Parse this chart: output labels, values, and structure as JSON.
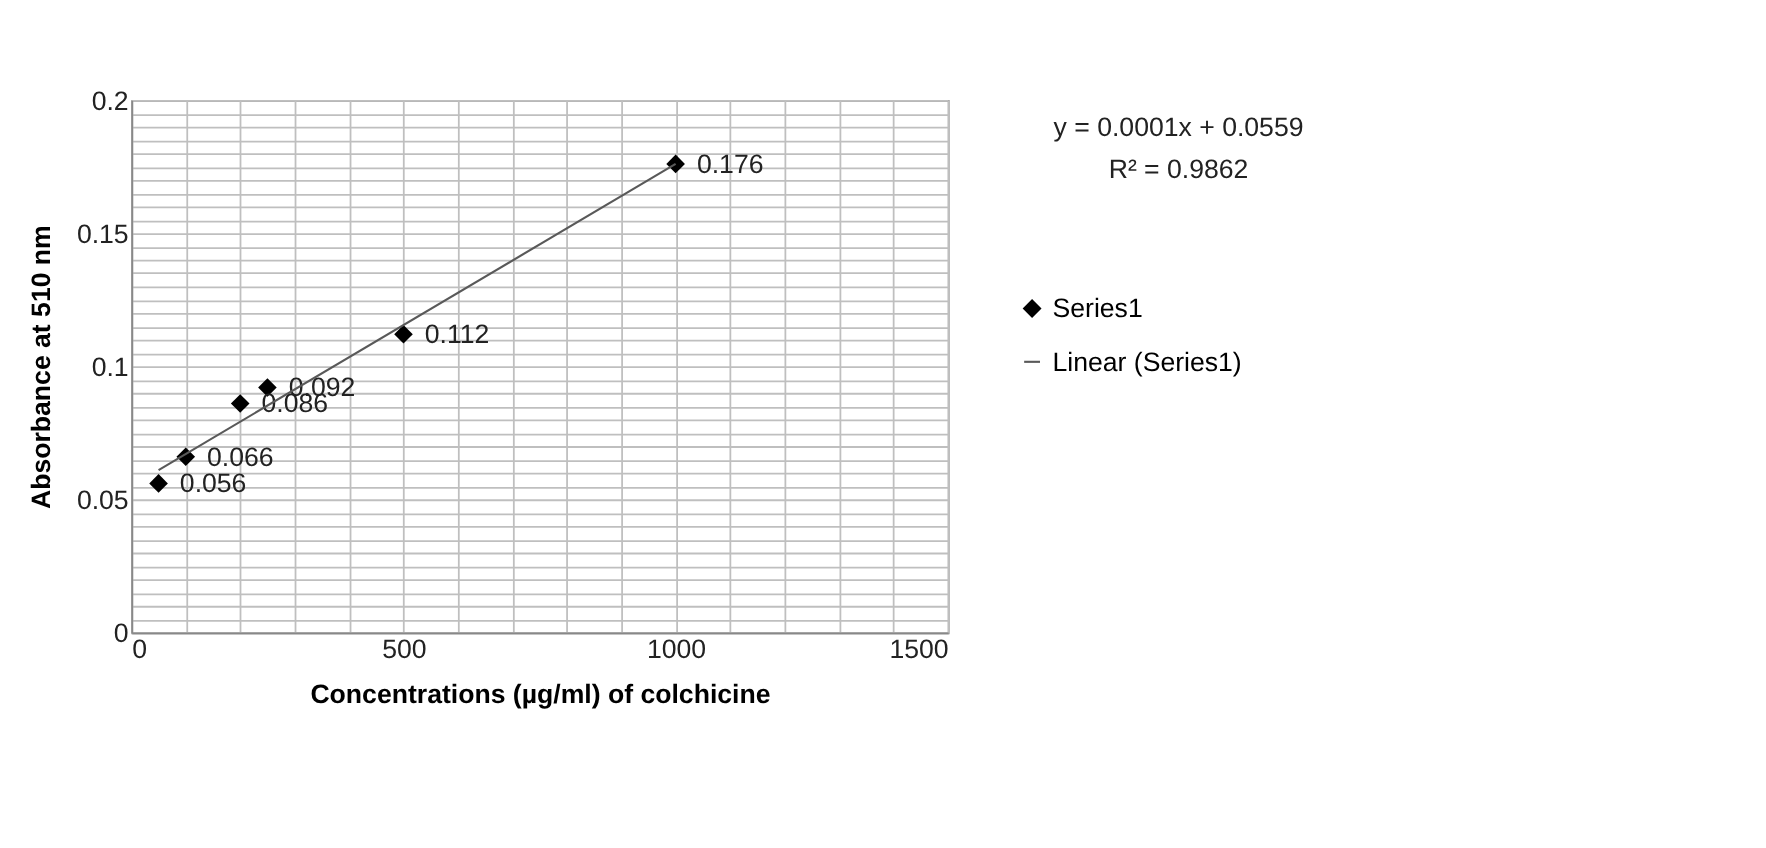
{
  "chart_data": {
    "type": "scatter",
    "xlabel": "Concentrations (µg/ml) of colchicine",
    "ylabel": "Absorbance at 510 nm",
    "x": [
      50,
      100,
      200,
      250,
      500,
      1000
    ],
    "series": [
      {
        "name": "Series1",
        "color": "#000000",
        "marker": "diamond",
        "values": [
          0.056,
          0.066,
          0.086,
          0.092,
          0.112,
          0.176
        ],
        "value_labels": [
          "0.056",
          "0.066",
          "0.086",
          "0.092",
          "0.112",
          "0.176"
        ]
      },
      {
        "name": "Linear (Series1)",
        "type": "line",
        "color": "#595959",
        "line_style": "solid",
        "marker": "none",
        "x": [
          50,
          1000
        ],
        "values": [
          0.061,
          0.176
        ]
      }
    ],
    "xlim": [
      0,
      1500
    ],
    "ylim": [
      0,
      0.2
    ],
    "xticks": [
      0,
      {
        "value": 100,
        "label": null
      },
      {
        "value": 200,
        "label": null
      },
      {
        "value": 300,
        "label": null
      },
      {
        "value": 400,
        "label": null
      },
      500,
      {
        "value": 600,
        "label": null
      },
      {
        "value": 700,
        "label": null
      },
      {
        "value": 800,
        "label": null
      },
      {
        "value": 900,
        "label": null
      },
      1000,
      {
        "value": 1100,
        "label": null
      },
      {
        "value": 1200,
        "label": null
      },
      {
        "value": 1300,
        "label": null
      },
      {
        "value": 1400,
        "label": null
      },
      1500
    ],
    "yticks": [
      0,
      {
        "value": 0.005,
        "label": null
      },
      {
        "value": 0.01,
        "label": null
      },
      {
        "value": 0.015,
        "label": null
      },
      {
        "value": 0.02,
        "label": null
      },
      {
        "value": 0.025,
        "label": null
      },
      {
        "value": 0.03,
        "label": null
      },
      {
        "value": 0.035,
        "label": null
      },
      {
        "value": 0.04,
        "label": null
      },
      {
        "value": 0.045,
        "label": null
      },
      0.05,
      {
        "value": 0.055,
        "label": null
      },
      {
        "value": 0.06,
        "label": null
      },
      {
        "value": 0.065,
        "label": null
      },
      {
        "value": 0.07,
        "label": null
      },
      {
        "value": 0.075,
        "label": null
      },
      {
        "value": 0.08,
        "label": null
      },
      {
        "value": 0.085,
        "label": null
      },
      {
        "value": 0.09,
        "label": null
      },
      {
        "value": 0.095,
        "label": null
      },
      0.1,
      {
        "value": 0.105,
        "label": null
      },
      {
        "value": 0.11,
        "label": null
      },
      {
        "value": 0.115,
        "label": null
      },
      {
        "value": 0.12,
        "label": null
      },
      {
        "value": 0.125,
        "label": null
      },
      {
        "value": 0.13,
        "label": null
      },
      {
        "value": 0.135,
        "label": null
      },
      {
        "value": 0.14,
        "label": null
      },
      {
        "value": 0.145,
        "label": null
      },
      0.15,
      {
        "value": 0.155,
        "label": null
      },
      {
        "value": 0.16,
        "label": null
      },
      {
        "value": 0.165,
        "label": null
      },
      {
        "value": 0.17,
        "label": null
      },
      {
        "value": 0.175,
        "label": null
      },
      {
        "value": 0.18,
        "label": null
      },
      {
        "value": 0.185,
        "label": null
      },
      {
        "value": 0.19,
        "label": null
      },
      {
        "value": 0.195,
        "label": null
      },
      0.2
    ],
    "grid": true,
    "legend": "right",
    "annotations": [
      "y = 0.0001x + 0.0559",
      "R² = 0.9862"
    ]
  }
}
